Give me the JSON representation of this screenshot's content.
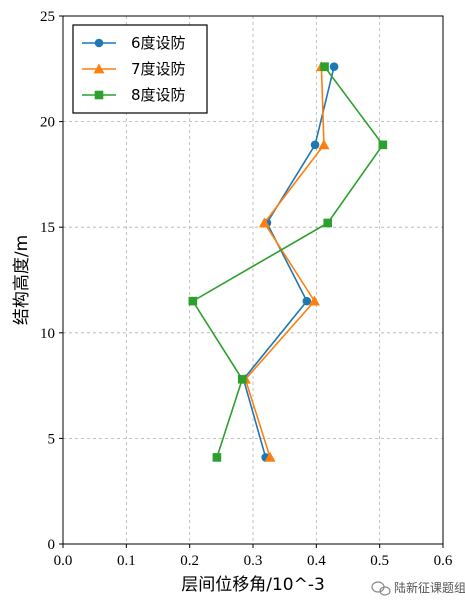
{
  "chart_data": {
    "type": "line",
    "xlabel": "层间位移角/10^-3",
    "ylabel": "结构高度/m",
    "xlim": [
      0.0,
      0.6
    ],
    "ylim": [
      0,
      25
    ],
    "xticks": [
      0.0,
      0.1,
      0.2,
      0.3,
      0.4,
      0.5,
      0.6
    ],
    "yticks": [
      0,
      5,
      10,
      15,
      20,
      25
    ],
    "xtick_labels": [
      "0.0",
      "0.1",
      "0.2",
      "0.3",
      "0.4",
      "0.5",
      "0.6"
    ],
    "ytick_labels": [
      "0",
      "5",
      "10",
      "15",
      "20",
      "25"
    ],
    "grid": true,
    "legend_position": "top-left",
    "series": [
      {
        "name": "6度设防",
        "color": "#1f77b4",
        "marker": "circle",
        "x": [
          0.32,
          0.285,
          0.385,
          0.322,
          0.398,
          0.428
        ],
        "y": [
          4.1,
          7.8,
          11.5,
          15.2,
          18.9,
          22.6
        ]
      },
      {
        "name": "7度设防",
        "color": "#ff7f0e",
        "marker": "triangle",
        "x": [
          0.327,
          0.288,
          0.397,
          0.318,
          0.412,
          0.408
        ],
        "y": [
          4.1,
          7.8,
          11.5,
          15.2,
          18.9,
          22.6
        ]
      },
      {
        "name": "8度设防",
        "color": "#2ca02c",
        "marker": "square",
        "x": [
          0.243,
          0.283,
          0.205,
          0.418,
          0.505,
          0.413
        ],
        "y": [
          4.1,
          7.8,
          11.5,
          15.2,
          18.9,
          22.6
        ]
      }
    ]
  },
  "watermark": {
    "text": "陆新征课题组",
    "icon": "wechat-icon"
  }
}
